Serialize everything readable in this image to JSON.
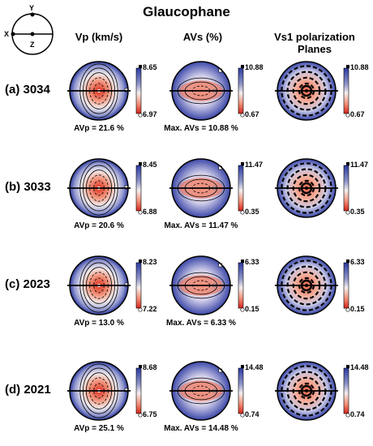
{
  "title": "Glaucophane",
  "columns": [
    "Vp (km/s)",
    "AVs (%)",
    "Vs1 polarization Planes"
  ],
  "axes_key": {
    "y": "Y",
    "x": "X",
    "z": "Z"
  },
  "rows": [
    {
      "label": "(a) 3034",
      "vp": {
        "caption": "AVp = 21.6 %",
        "max": "8.65",
        "min": "6.97"
      },
      "avs": {
        "caption": "Max. AVs = 10.88 %",
        "max": "10.88",
        "min": "0.67"
      },
      "pol": {
        "max": "10.88",
        "min": "0.67"
      }
    },
    {
      "label": "(b) 3033",
      "vp": {
        "caption": "AVp = 20.6 %",
        "max": "8.45",
        "min": "6.88"
      },
      "avs": {
        "caption": "Max. AVs = 11.47 %",
        "max": "11.47",
        "min": "0.35"
      },
      "pol": {
        "max": "11.47",
        "min": "0.35"
      }
    },
    {
      "label": "(c) 2023",
      "vp": {
        "caption": "AVp = 13.0 %",
        "max": "8.23",
        "min": "7.22"
      },
      "avs": {
        "caption": "Max. AVs = 6.33 %",
        "max": "6.33",
        "min": "0.15"
      },
      "pol": {
        "max": "6.33",
        "min": "0.15"
      }
    },
    {
      "label": "(d) 2021",
      "vp": {
        "caption": "AVp = 25.1 %",
        "max": "8.68",
        "min": "6.75"
      },
      "avs": {
        "caption": "Max. AVs = 14.48 %",
        "max": "14.48",
        "min": "0.74"
      },
      "pol": {
        "max": "14.48",
        "min": "0.74"
      }
    }
  ]
}
